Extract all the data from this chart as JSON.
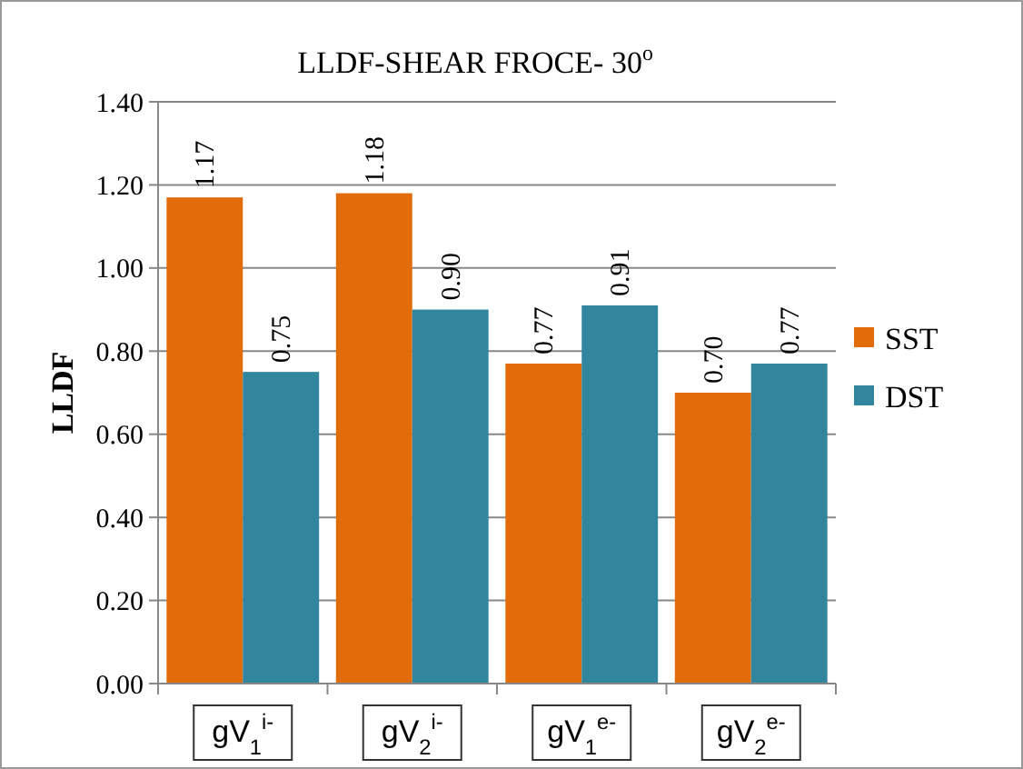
{
  "chart_data": {
    "type": "bar",
    "title": "LLDF-SHEAR FROCE- 30$^{o}$",
    "ylabel": "LLDF",
    "categories": [
      "gV$_{1}$$^{i-}$",
      "gV$_{2}$$^{i-}$",
      "gV$_{1}$$^{e-}$",
      "gV$_{2}$$^{e-}$"
    ],
    "series": [
      {
        "name": "SST",
        "color": "#e36c0a",
        "values": [
          1.17,
          1.18,
          0.77,
          0.7
        ],
        "value_labels": [
          "1.17",
          "1.18",
          "0.77",
          "0.70"
        ]
      },
      {
        "name": "DST",
        "color": "#31859c",
        "values": [
          0.75,
          0.9,
          0.91,
          0.77
        ],
        "value_labels": [
          "0.75",
          "0.90",
          "0.91",
          "0.77"
        ]
      }
    ],
    "ylim": [
      0,
      1.4
    ],
    "yticks": [
      {
        "value": 0,
        "label": "0.00"
      },
      {
        "value": 0.2,
        "label": "0.20"
      },
      {
        "value": 0.4,
        "label": "0.40"
      },
      {
        "value": 0.6,
        "label": "0.60"
      },
      {
        "value": 0.8,
        "label": "0.80"
      },
      {
        "value": 1,
        "label": "1.00"
      },
      {
        "value": 1.2,
        "label": "1.20"
      },
      {
        "value": 1.4,
        "label": "1.40"
      }
    ],
    "grid": "y",
    "legend": "right"
  }
}
